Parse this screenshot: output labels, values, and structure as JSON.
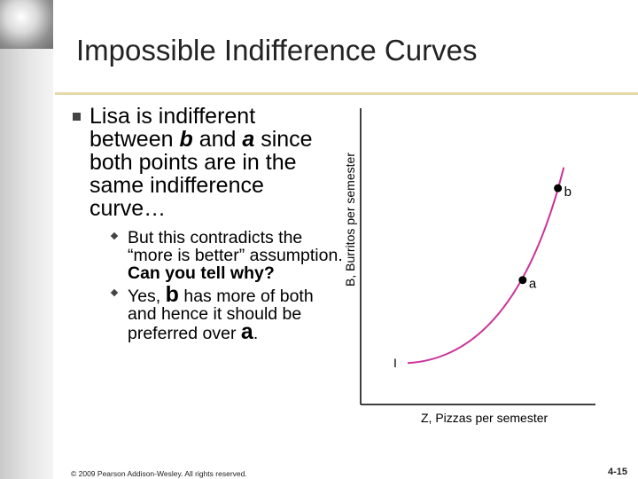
{
  "title": "Impossible Indifference Curves",
  "bullet1": {
    "prefix": "Lisa is indifferent between ",
    "b": "b",
    "mid": " and ",
    "a": "a",
    "suffix": " since both points are in the same indifference curve…"
  },
  "sub1": {
    "text": "But this contradicts the “more is better” assumption. ",
    "bold": "Can you tell why?"
  },
  "sub2": {
    "prefix": "Yes, ",
    "b": "b",
    "middle": " has more of both and hence it should be preferred over ",
    "a": "a",
    "end": "."
  },
  "chart_data": {
    "type": "line",
    "ylabel": "B, Burritos per semester",
    "xlabel": "Z, Pizzas per semester",
    "curve_label": "I",
    "curve_color": "#cc3399",
    "points": [
      {
        "name": "b",
        "x": 0.84,
        "y": 0.73
      },
      {
        "name": "a",
        "x": 0.69,
        "y": 0.42
      }
    ]
  },
  "footer": "© 2009 Pearson Addison-Wesley. All rights reserved.",
  "page_number": "4-15"
}
